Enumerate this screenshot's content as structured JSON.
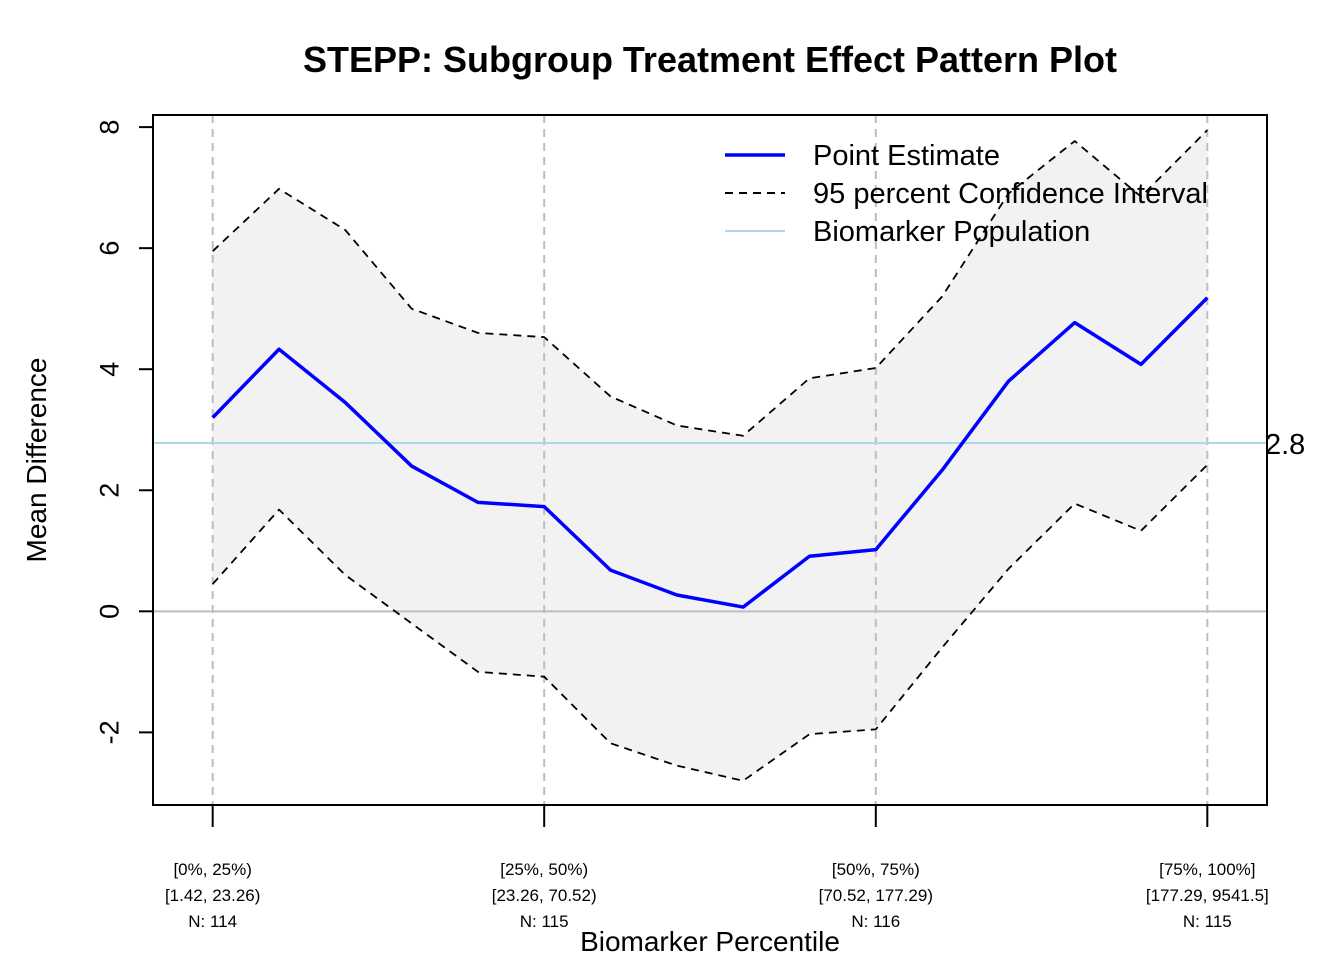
{
  "chart_data": {
    "type": "line",
    "title": "STEPP: Subgroup Treatment Effect Pattern Plot",
    "xlabel": "Biomarker Percentile",
    "ylabel": "Mean Difference",
    "ylim": [
      -3.2,
      8.2
    ],
    "xlim": [
      -0.06,
      1.06
    ],
    "y_ticks": [
      "-2",
      "0",
      "2",
      "4",
      "6",
      "8"
    ],
    "x_ticks": [
      {
        "pos": 0.0,
        "lines": [
          "[0%, 25%)",
          "[1.42, 23.26)",
          "N: 114"
        ]
      },
      {
        "pos": 0.3333,
        "lines": [
          "[25%, 50%)",
          "[23.26, 70.52)",
          "N: 115"
        ]
      },
      {
        "pos": 0.6667,
        "lines": [
          "[50%, 75%)",
          "[70.52, 177.29)",
          "N: 116"
        ]
      },
      {
        "pos": 1.0,
        "lines": [
          "[75%, 100%]",
          "[177.29, 9541.5]",
          "N: 115"
        ]
      }
    ],
    "x": [
      0.0,
      0.0667,
      0.1333,
      0.2,
      0.2667,
      0.3333,
      0.4,
      0.4667,
      0.5333,
      0.6,
      0.6667,
      0.7333,
      0.8,
      0.8667,
      0.9333,
      1.0
    ],
    "series": [
      {
        "name": "Point Estimate",
        "role": "estimate",
        "color": "#0000ff",
        "values": [
          3.2,
          4.33,
          3.45,
          2.4,
          1.8,
          1.73,
          0.68,
          0.27,
          0.07,
          0.91,
          1.02,
          2.33,
          3.8,
          4.77,
          4.08,
          5.18
        ]
      },
      {
        "name": "95 percent Confidence Interval",
        "role": "upper",
        "color": "#000000",
        "values": [
          5.95,
          6.98,
          6.3,
          5.0,
          4.6,
          4.53,
          3.55,
          3.07,
          2.9,
          3.85,
          4.02,
          5.2,
          6.9,
          7.77,
          6.85,
          7.95
        ]
      },
      {
        "name": "",
        "role": "lower",
        "color": "#000000",
        "values": [
          0.45,
          1.68,
          0.6,
          -0.2,
          -1.0,
          -1.08,
          -2.18,
          -2.55,
          -2.8,
          -2.03,
          -1.95,
          -0.6,
          0.7,
          1.78,
          1.33,
          2.42
        ]
      }
    ],
    "reference_lines": [
      {
        "name": "Biomarker Population",
        "value": 2.78,
        "label": "2.8",
        "color": "#add8e6"
      },
      {
        "value": 0,
        "color": "#bebebe"
      }
    ],
    "band_color": "#f2f2f2",
    "grid": "vertical dashed at x ticks",
    "legend": {
      "position": "top-right",
      "entries": [
        {
          "label": "Point Estimate",
          "style": "solid",
          "color": "#0000ff"
        },
        {
          "label": "95 percent Confidence Interval",
          "style": "dashed",
          "color": "#000000"
        },
        {
          "label": "Biomarker Population",
          "style": "solid",
          "color": "#add8e6"
        }
      ]
    }
  }
}
